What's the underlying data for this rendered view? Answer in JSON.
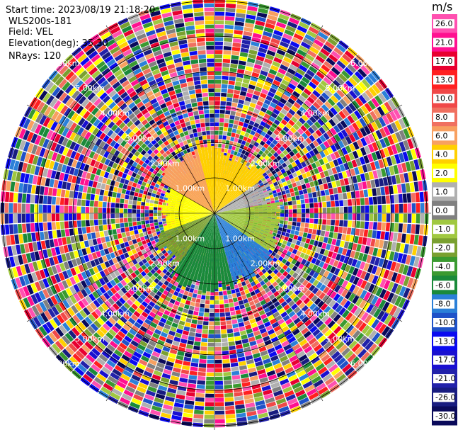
{
  "header": {
    "start_time": "Start time: 2023/08/19 21:18:20",
    "site": "WLS200s-181",
    "field": "Field: VEL",
    "elevation": "Elevation(deg): 35.30",
    "nrays": "NRays: 120"
  },
  "chart_data": {
    "type": "ppi",
    "field": "VEL",
    "units": "m/s",
    "nrays": 120,
    "max_range_km": 6.0,
    "range_rings_km": [
      1,
      2,
      3,
      4,
      5,
      6
    ],
    "range_ring_labels": [
      "1.00km",
      "2.00km",
      "3.00km",
      "4.00km",
      "5.00km",
      "6.00km"
    ],
    "colorbar": {
      "tick_labels": [
        "-30.0",
        "-26.0",
        "-21.0",
        "-17.0",
        "-13.0",
        "-10.0",
        "-8.0",
        "-6.0",
        "-4.0",
        "-2.0",
        "-1.0",
        "0.0",
        "1.0",
        "2.0",
        "4.0",
        "6.0",
        "8.0",
        "10.0",
        "13.0",
        "17.0",
        "21.0",
        "26.0"
      ],
      "colors": [
        "#0a0a5a",
        "#181c80",
        "#2222aa",
        "#1a10d0",
        "#0a0af0",
        "#1f52c8",
        "#2b80d8",
        "#1a8a3a",
        "#3a9a30",
        "#7aa030",
        "#a0c840",
        "#808080",
        "#b0b0b0",
        "#ffff00",
        "#ffd000",
        "#f8a060",
        "#f07060",
        "#f04848",
        "#ff2020",
        "#e80030",
        "#ff1090",
        "#ff50b0"
      ]
    },
    "regions": [
      {
        "from_deg": 270,
        "to_deg": 360,
        "radius_km": 1.5,
        "color": "#ffff00"
      },
      {
        "from_deg": 300,
        "to_deg": 345,
        "radius_km": 1.8,
        "color": "#f8a060"
      },
      {
        "from_deg": 345,
        "to_deg": 360,
        "radius_km": 2.0,
        "color": "#ffd000"
      },
      {
        "from_deg": 0,
        "to_deg": 55,
        "radius_km": 1.7,
        "color": "#ffd000"
      },
      {
        "from_deg": 55,
        "to_deg": 80,
        "radius_km": 1.6,
        "color": "#b0b0b0"
      },
      {
        "from_deg": 80,
        "to_deg": 125,
        "radius_km": 1.8,
        "color": "#a0c840"
      },
      {
        "from_deg": 125,
        "to_deg": 165,
        "radius_km": 2.0,
        "color": "#2b80d8"
      },
      {
        "from_deg": 165,
        "to_deg": 215,
        "radius_km": 2.1,
        "color": "#1a8a3a"
      },
      {
        "from_deg": 215,
        "to_deg": 250,
        "radius_km": 1.8,
        "color": "#7aa030"
      },
      {
        "from_deg": 250,
        "to_deg": 270,
        "radius_km": 1.5,
        "color": "#ffff00"
      }
    ]
  }
}
